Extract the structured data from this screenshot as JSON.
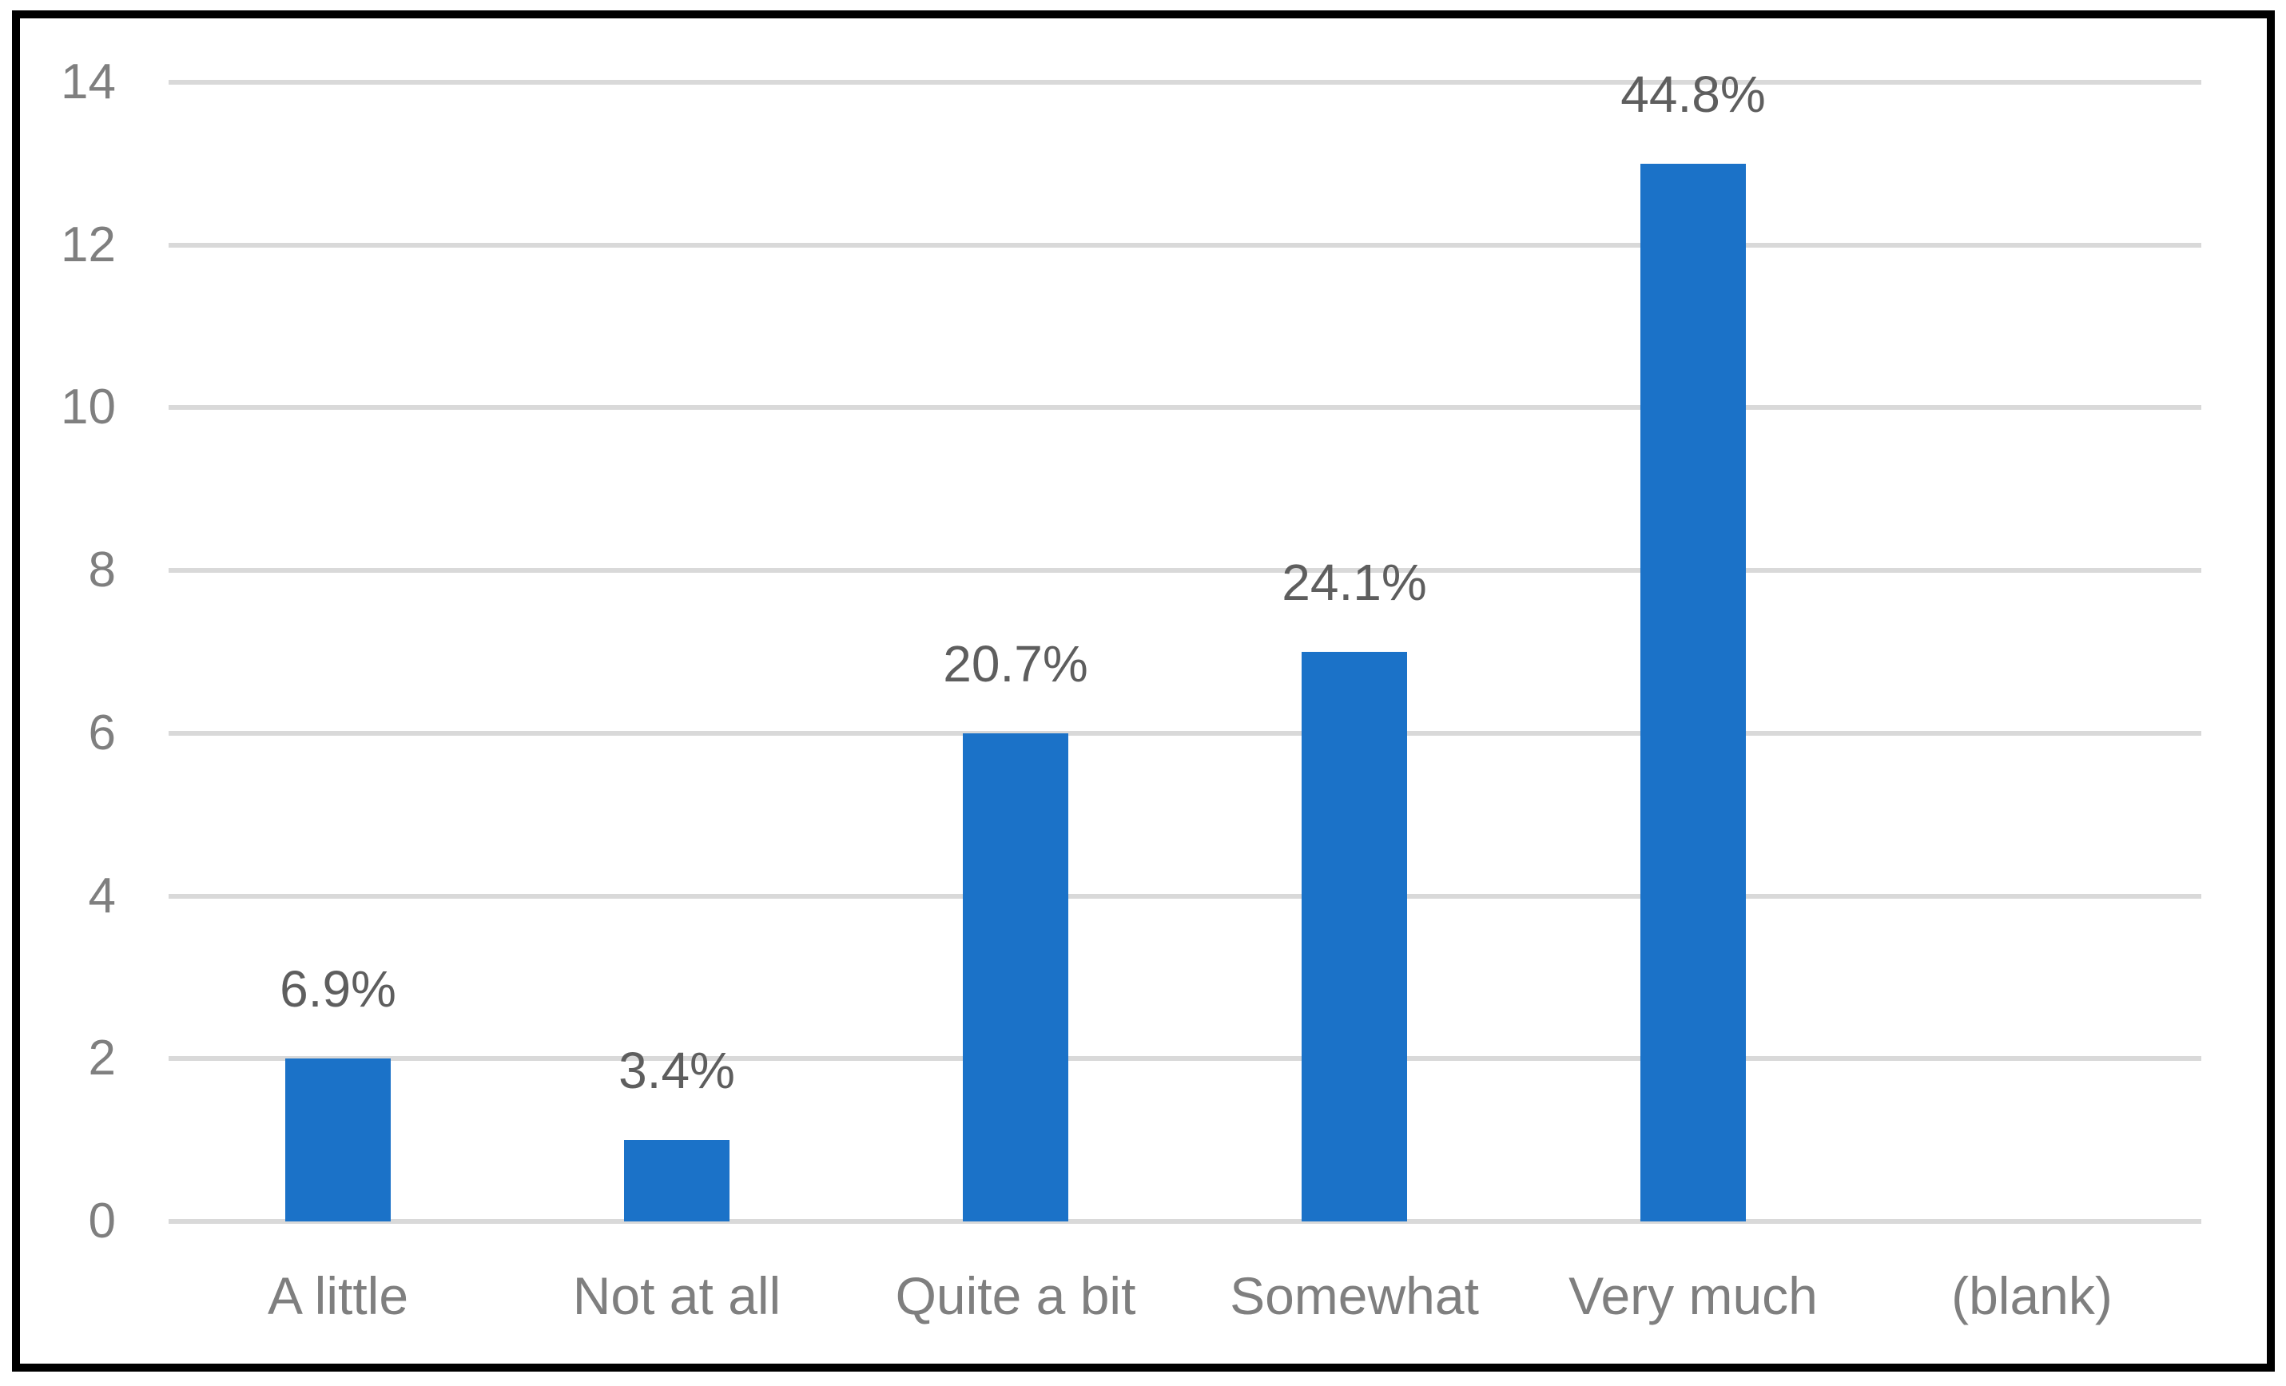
{
  "chart_data": {
    "type": "bar",
    "categories": [
      "A little",
      "Not at all",
      "Quite a bit",
      "Somewhat",
      "Very much",
      "(blank)"
    ],
    "values": [
      2,
      1,
      6,
      7,
      13,
      0
    ],
    "data_labels": [
      "6.9%",
      "3.4%",
      "20.7%",
      "24.1%",
      "44.8%",
      ""
    ],
    "title": "",
    "xlabel": "",
    "ylabel": "",
    "ylim": [
      0,
      14
    ],
    "yticks": [
      0,
      2,
      4,
      6,
      8,
      10,
      12,
      14
    ],
    "grid": true,
    "legend": false,
    "layout_hints": {
      "gridlines": "horizontal only, light gray, at every tick",
      "bar_gap": "bars centered in category slots, ~31% slot width",
      "frame": "thick black rectangle around whole chart"
    },
    "colors": {
      "bar": "#1B72C8",
      "gridline": "#D9D9D9",
      "axis_label": "#7F7F7F",
      "data_label": "#5E5E5E",
      "border": "#000000",
      "background": "#FFFFFF"
    }
  }
}
